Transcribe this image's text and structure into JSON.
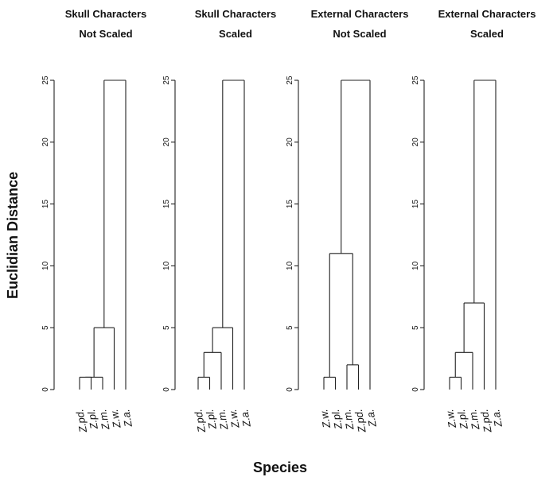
{
  "figure": {
    "ylabel": "Euclidian Distance",
    "xlabel": "Species"
  },
  "chart_data": [
    {
      "type": "dendrogram",
      "title_lines": [
        "Skull Characters",
        "Not Scaled"
      ],
      "ylim": [
        0,
        25
      ],
      "yticks": [
        0,
        5,
        10,
        15,
        20,
        25
      ],
      "leaves": [
        "Z.pd.",
        "Z.pl.",
        "Z.m.",
        "Z.w.",
        "Z.a."
      ],
      "merges": [
        {
          "left": 0,
          "right": 1,
          "height": 1
        },
        {
          "left": 5,
          "right": 2,
          "height": 1
        },
        {
          "left": 6,
          "right": 3,
          "height": 5
        },
        {
          "left": 7,
          "right": 4,
          "height": 25
        }
      ]
    },
    {
      "type": "dendrogram",
      "title_lines": [
        "Skull Characters",
        "Scaled"
      ],
      "ylim": [
        0,
        25
      ],
      "yticks": [
        0,
        5,
        10,
        15,
        20,
        25
      ],
      "leaves": [
        "Z.pd.",
        "Z.pl.",
        "Z.m.",
        "Z.w.",
        "Z.a."
      ],
      "merges": [
        {
          "left": 0,
          "right": 1,
          "height": 1
        },
        {
          "left": 5,
          "right": 2,
          "height": 3
        },
        {
          "left": 6,
          "right": 3,
          "height": 5
        },
        {
          "left": 7,
          "right": 4,
          "height": 25
        }
      ]
    },
    {
      "type": "dendrogram",
      "title_lines": [
        "External Characters",
        "Not Scaled"
      ],
      "ylim": [
        0,
        25
      ],
      "yticks": [
        0,
        5,
        10,
        15,
        20,
        25
      ],
      "leaves": [
        "Z.w.",
        "Z.pl.",
        "Z.m.",
        "Z.pd.",
        "Z.a."
      ],
      "merges": [
        {
          "left": 0,
          "right": 1,
          "height": 1
        },
        {
          "left": 2,
          "right": 3,
          "height": 2
        },
        {
          "left": 5,
          "right": 6,
          "height": 11
        },
        {
          "left": 7,
          "right": 4,
          "height": 25
        }
      ]
    },
    {
      "type": "dendrogram",
      "title_lines": [
        "External Characters",
        "Scaled"
      ],
      "ylim": [
        0,
        25
      ],
      "yticks": [
        0,
        5,
        10,
        15,
        20,
        25
      ],
      "leaves": [
        "Z.w.",
        "Z.pl.",
        "Z.m.",
        "Z.pd.",
        "Z.a."
      ],
      "merges": [
        {
          "left": 0,
          "right": 1,
          "height": 1
        },
        {
          "left": 5,
          "right": 2,
          "height": 3
        },
        {
          "left": 6,
          "right": 3,
          "height": 7
        },
        {
          "left": 7,
          "right": 4,
          "height": 25
        }
      ]
    }
  ]
}
